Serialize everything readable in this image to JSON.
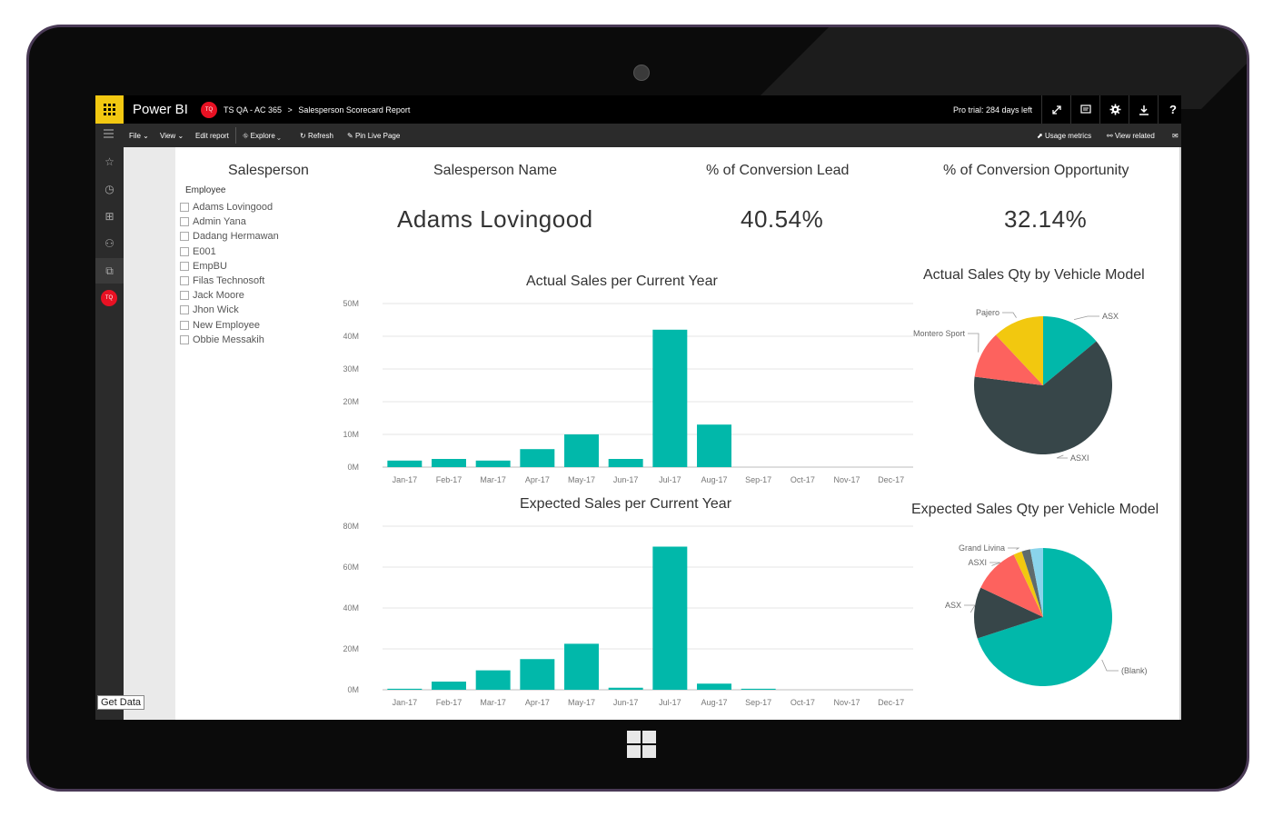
{
  "app": {
    "name": "Power BI",
    "avatar_initials": "TQ"
  },
  "breadcrumb": {
    "workspace": "TS QA - AC 365",
    "separator": ">",
    "report": "Salesperson Scorecard Report"
  },
  "trial_text": "Pro trial: 284 days left",
  "topbar_icons": [
    "fullscreen-icon",
    "comment-icon",
    "gear-icon",
    "download-icon",
    "help-icon"
  ],
  "help_label": "?",
  "toolbar": {
    "file": "File",
    "view": "View",
    "edit_report": "Edit report",
    "explore": "Explore",
    "refresh": "Refresh",
    "pin_live_page": "Pin Live Page",
    "usage_metrics": "Usage metrics",
    "view_related": "View related"
  },
  "left_nav": [
    "favorites-icon",
    "recent-icon",
    "apps-icon",
    "shared-icon",
    "workspaces-icon"
  ],
  "get_data": "Get Data",
  "slicer": {
    "title": "Salesperson",
    "field": "Employee",
    "items": [
      "Adams Lovingood",
      "Admin Yana",
      "Dadang Hermawan",
      "E001",
      "EmpBU",
      "Filas Technosoft",
      "Jack Moore",
      "Jhon Wick",
      "New Employee",
      "Obbie Messakih"
    ]
  },
  "cards": [
    {
      "title": "Salesperson Name",
      "value": "Adams Lovingood"
    },
    {
      "title": "% of Conversion Lead",
      "value": "40.54%"
    },
    {
      "title": "% of Conversion Opportunity",
      "value": "32.14%"
    }
  ],
  "colors": {
    "bar": "#01b8aa",
    "dark": "#374649",
    "red": "#fd625e",
    "yellow": "#f2c80f",
    "gray": "#5f6b6d",
    "lightblue": "#8ad4eb",
    "brand": "#f2c811"
  },
  "chart_data": [
    {
      "type": "bar",
      "title": "Actual Sales per Current Year",
      "categories": [
        "Jan-17",
        "Feb-17",
        "Mar-17",
        "Apr-17",
        "May-17",
        "Jun-17",
        "Jul-17",
        "Aug-17",
        "Sep-17",
        "Oct-17",
        "Nov-17",
        "Dec-17"
      ],
      "values": [
        2,
        2.5,
        2,
        5.5,
        10,
        2.5,
        42,
        13,
        0,
        0,
        0,
        0
      ],
      "unit": "M",
      "yticks": [
        "0M",
        "10M",
        "20M",
        "30M",
        "40M",
        "50M"
      ],
      "ylim": [
        0,
        50
      ]
    },
    {
      "type": "bar",
      "title": "Expected Sales per Current Year",
      "categories": [
        "Jan-17",
        "Feb-17",
        "Mar-17",
        "Apr-17",
        "May-17",
        "Jun-17",
        "Jul-17",
        "Aug-17",
        "Sep-17",
        "Oct-17",
        "Nov-17",
        "Dec-17"
      ],
      "values": [
        0.5,
        4,
        9.5,
        15,
        22.5,
        1,
        70,
        3,
        0.5,
        0,
        0,
        0
      ],
      "unit": "M",
      "yticks": [
        "0M",
        "20M",
        "40M",
        "60M",
        "80M"
      ],
      "ylim": [
        0,
        80
      ]
    },
    {
      "type": "pie",
      "title": "Actual Sales Qty by Vehicle Model",
      "labels": [
        "ASX",
        "ASXI",
        "Montero Sport",
        "Pajero"
      ],
      "values": [
        14,
        63,
        11,
        12
      ],
      "colors": [
        "#01b8aa",
        "#374649",
        "#fd625e",
        "#f2c80f"
      ]
    },
    {
      "type": "pie",
      "title": "Expected Sales Qty per Vehicle Model",
      "labels": [
        "(Blank)",
        "ASX",
        "ASXI",
        "Grand Livina",
        "",
        ""
      ],
      "values": [
        70,
        12,
        11,
        2,
        2,
        3
      ],
      "colors": [
        "#01b8aa",
        "#374649",
        "#fd625e",
        "#f2c80f",
        "#5f6b6d",
        "#8ad4eb"
      ]
    }
  ]
}
